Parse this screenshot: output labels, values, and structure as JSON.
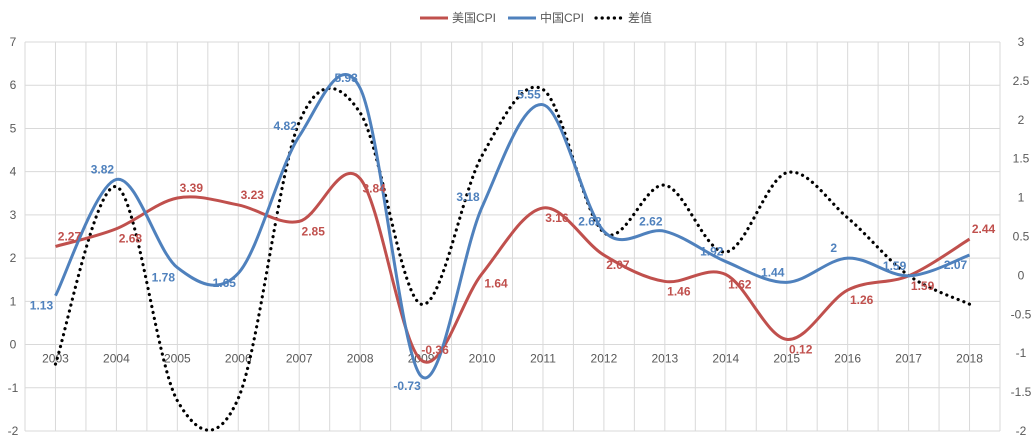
{
  "chart_data": {
    "type": "line",
    "title": "",
    "categories": [
      "2003",
      "2004",
      "2005",
      "2006",
      "2007",
      "2008",
      "2009",
      "2010",
      "2011",
      "2012",
      "2013",
      "2014",
      "2015",
      "2016",
      "2017",
      "2018"
    ],
    "series": [
      {
        "name": "美国CPI",
        "axis": "left",
        "color": "#c0504d",
        "style": "solid",
        "values": [
          2.27,
          2.68,
          3.39,
          3.23,
          2.85,
          3.84,
          -0.36,
          1.64,
          3.16,
          2.07,
          1.46,
          1.62,
          0.12,
          1.26,
          1.59,
          2.44
        ],
        "labels": [
          "2.27",
          "2.68",
          "3.39",
          "3.23",
          "2.85",
          "3.84",
          "-0.36",
          "1.64",
          "3.16",
          "2.07",
          "1.46",
          "1.62",
          "0.12",
          "1.26",
          "1.59",
          "2.44"
        ]
      },
      {
        "name": "中国CPI",
        "axis": "left",
        "color": "#4f81bd",
        "style": "solid",
        "values": [
          1.13,
          3.82,
          1.78,
          1.65,
          4.82,
          5.93,
          -0.73,
          3.18,
          5.55,
          2.62,
          2.62,
          1.92,
          1.44,
          2,
          1.59,
          2.07
        ],
        "labels": [
          "1.13",
          "3.82",
          "1.78",
          "1.65",
          "4.82",
          "5.93",
          "-0.73",
          "3.18",
          "5.55",
          "2.62",
          "2.62",
          "1.92",
          "1.44",
          "2",
          "1.59",
          "2.07"
        ]
      },
      {
        "name": "差值",
        "axis": "right",
        "color": "#000000",
        "style": "dotted",
        "values": [
          -1.14,
          1.14,
          -1.61,
          -1.58,
          1.97,
          2.09,
          -0.37,
          1.54,
          2.39,
          0.55,
          1.16,
          0.3,
          1.32,
          0.74,
          0,
          -0.37
        ]
      }
    ],
    "left_axis": {
      "min": -2,
      "max": 7,
      "ticks": [
        "-2",
        "-1",
        "0",
        "1",
        "2",
        "3",
        "4",
        "5",
        "6",
        "7"
      ]
    },
    "right_axis": {
      "min": -2,
      "max": 3,
      "ticks": [
        "-2",
        "-1.5",
        "-1",
        "-0.5",
        "0",
        "0.5",
        "1",
        "1.5",
        "2",
        "2.5",
        "3"
      ]
    },
    "grid": true,
    "legend_position": "top"
  }
}
